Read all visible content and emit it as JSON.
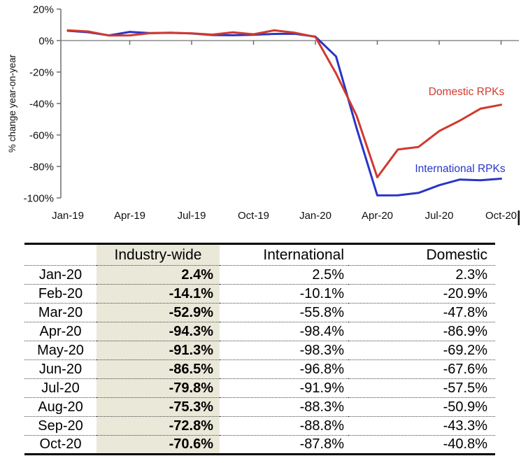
{
  "chart_data": {
    "type": "line",
    "ylabel": "% change year-on-year",
    "ylim": [
      -100,
      20
    ],
    "yticks": [
      20,
      0,
      -20,
      -40,
      -60,
      -80,
      -100
    ],
    "ytick_suffix": "%",
    "x": [
      "Jan-19",
      "Feb-19",
      "Mar-19",
      "Apr-19",
      "May-19",
      "Jun-19",
      "Jul-19",
      "Aug-19",
      "Sep-19",
      "Oct-19",
      "Nov-19",
      "Dec-19",
      "Jan-20",
      "Feb-20",
      "Mar-20",
      "Apr-20",
      "May-20",
      "Jun-20",
      "Jul-20",
      "Aug-20",
      "Sep-20",
      "Oct-20"
    ],
    "xtick_labels": [
      "Jan-19",
      "Apr-19",
      "Jul-19",
      "Oct-19",
      "Jan-20",
      "Apr-20",
      "Jul-20",
      "Oct-20"
    ],
    "grid": false,
    "legend_position": "inline-labels",
    "series": [
      {
        "name": "International RPKs",
        "color": "#2a35c6",
        "values": [
          6.2,
          5.3,
          3.3,
          5.5,
          4.7,
          5.0,
          4.5,
          3.5,
          3.4,
          3.7,
          4.2,
          4.3,
          2.5,
          -10.1,
          -55.8,
          -98.4,
          -98.3,
          -96.8,
          -91.9,
          -88.3,
          -88.8,
          -87.8
        ]
      },
      {
        "name": "Domestic RPKs",
        "color": "#d03a2e",
        "values": [
          6.5,
          5.8,
          3.2,
          3.3,
          4.7,
          4.9,
          4.6,
          3.8,
          5.2,
          4.0,
          6.5,
          5.0,
          2.3,
          -20.9,
          -47.8,
          -86.9,
          -69.2,
          -67.6,
          -57.5,
          -50.9,
          -43.3,
          -40.8
        ]
      }
    ],
    "axis_color": "#6e6e6e",
    "zero_line_color": "#8c8c8c",
    "label_color": "#111111"
  },
  "table": {
    "columns": [
      "",
      "Industry-wide",
      "International",
      "Domestic"
    ],
    "highlight_color": "#eae8d9",
    "rows": [
      {
        "month": "Jan-20",
        "industry": "2.4%",
        "international": "2.5%",
        "domestic": "2.3%"
      },
      {
        "month": "Feb-20",
        "industry": "-14.1%",
        "international": "-10.1%",
        "domestic": "-20.9%"
      },
      {
        "month": "Mar-20",
        "industry": "-52.9%",
        "international": "-55.8%",
        "domestic": "-47.8%"
      },
      {
        "month": "Apr-20",
        "industry": "-94.3%",
        "international": "-98.4%",
        "domestic": "-86.9%"
      },
      {
        "month": "May-20",
        "industry": "-91.3%",
        "international": "-98.3%",
        "domestic": "-69.2%"
      },
      {
        "month": "Jun-20",
        "industry": "-86.5%",
        "international": "-96.8%",
        "domestic": "-67.6%"
      },
      {
        "month": "Jul-20",
        "industry": "-79.8%",
        "international": "-91.9%",
        "domestic": "-57.5%"
      },
      {
        "month": "Aug-20",
        "industry": "-75.3%",
        "international": "-88.3%",
        "domestic": "-50.9%"
      },
      {
        "month": "Sep-20",
        "industry": "-72.8%",
        "international": "-88.8%",
        "domestic": "-43.3%"
      },
      {
        "month": "Oct-20",
        "industry": "-70.6%",
        "international": "-87.8%",
        "domestic": "-40.8%"
      }
    ]
  }
}
